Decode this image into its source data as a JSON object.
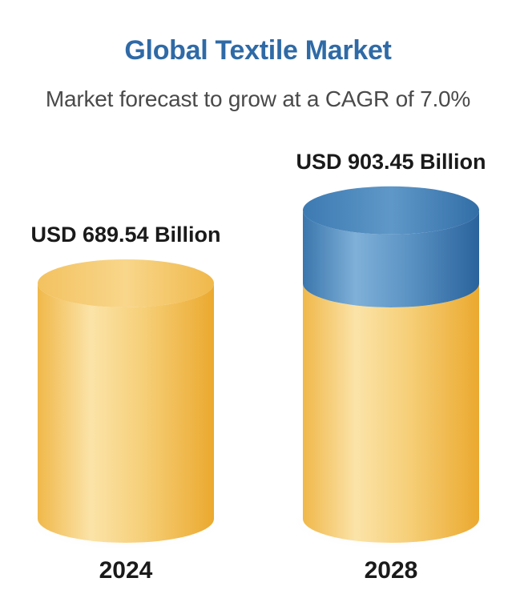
{
  "chart_data": {
    "type": "bar",
    "title": "Global Textile Market",
    "subtitle": "Market forecast to grow at a CAGR of 7.0%",
    "categories": [
      "2024",
      "2028"
    ],
    "values": [
      689.54,
      903.45
    ],
    "value_labels": [
      "USD 689.54 Billion",
      "USD 903.45 Billion"
    ],
    "unit": "USD Billion",
    "xlabel": "",
    "ylabel": "",
    "grid": false,
    "legend": "none",
    "style": "cylinder",
    "colors": {
      "base": "#f2c15a",
      "base_highlight": "#fbe3a8",
      "growth": "#3f7fb6",
      "growth_highlight": "#7fb0d8",
      "title": "#2f6aa6"
    }
  }
}
